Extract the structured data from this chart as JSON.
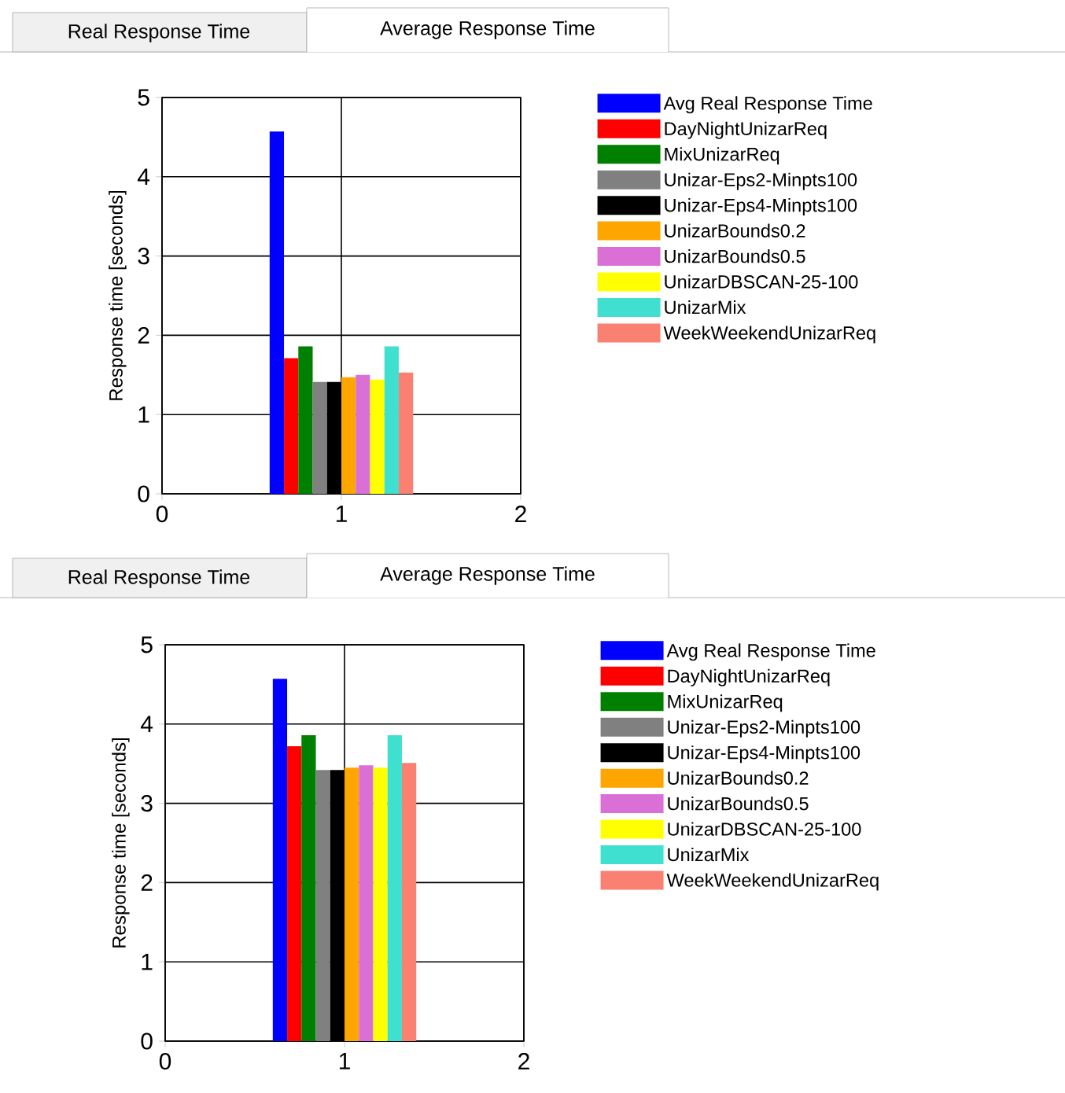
{
  "chart_data": [
    {
      "type": "bar",
      "ylabel": "Response time [seconds]",
      "annotations": [
        "Real Response Time",
        "Average Response Time"
      ],
      "xlim": [
        0,
        2
      ],
      "xticks": [
        0,
        1,
        2
      ],
      "ylim": [
        0,
        5
      ],
      "yticks": [
        0,
        1,
        2,
        3,
        4,
        5
      ],
      "grid": true,
      "legend": "right",
      "series": [
        {
          "name": "Avg Real Response Time",
          "color": "#0000ff",
          "x": [
            0.64
          ],
          "values": [
            4.57
          ]
        },
        {
          "name": "DayNightUnizarReq",
          "color": "#ff0000",
          "x": [
            0.72
          ],
          "values": [
            1.71
          ]
        },
        {
          "name": "MixUnizarReq",
          "color": "#008000",
          "x": [
            0.8
          ],
          "values": [
            1.86
          ]
        },
        {
          "name": "Unizar-Eps2-Minpts100",
          "color": "#808080",
          "x": [
            0.88
          ],
          "values": [
            1.41
          ]
        },
        {
          "name": "Unizar-Eps4-Minpts100",
          "color": "#000000",
          "x": [
            0.96
          ],
          "values": [
            1.41
          ]
        },
        {
          "name": "UnizarBounds0.2",
          "color": "#ffa500",
          "x": [
            1.04
          ],
          "values": [
            1.47
          ]
        },
        {
          "name": "UnizarBounds0.5",
          "color": "#da70d6",
          "x": [
            1.12
          ],
          "values": [
            1.5
          ]
        },
        {
          "name": "UnizarDBSCAN-25-100",
          "color": "#ffff00",
          "x": [
            1.2
          ],
          "values": [
            1.44
          ]
        },
        {
          "name": "UnizarMix",
          "color": "#40e0d0",
          "x": [
            1.28
          ],
          "values": [
            1.86
          ]
        },
        {
          "name": "WeekWeekendUnizarReq",
          "color": "#fa8072",
          "x": [
            1.36
          ],
          "values": [
            1.53
          ]
        }
      ]
    },
    {
      "type": "bar",
      "ylabel": "Response time [seconds]",
      "annotations": [
        "Real Response Time",
        "Average Response Time"
      ],
      "xlim": [
        0,
        2
      ],
      "xticks": [
        0,
        1,
        2
      ],
      "ylim": [
        0,
        5
      ],
      "yticks": [
        0,
        1,
        2,
        3,
        4,
        5
      ],
      "grid": true,
      "legend": "right",
      "series": [
        {
          "name": "Avg Real Response Time",
          "color": "#0000ff",
          "x": [
            0.64
          ],
          "values": [
            4.57
          ]
        },
        {
          "name": "DayNightUnizarReq",
          "color": "#ff0000",
          "x": [
            0.72
          ],
          "values": [
            3.72
          ]
        },
        {
          "name": "MixUnizarReq",
          "color": "#008000",
          "x": [
            0.8
          ],
          "values": [
            3.86
          ]
        },
        {
          "name": "Unizar-Eps2-Minpts100",
          "color": "#808080",
          "x": [
            0.88
          ],
          "values": [
            3.42
          ]
        },
        {
          "name": "Unizar-Eps4-Minpts100",
          "color": "#000000",
          "x": [
            0.96
          ],
          "values": [
            3.42
          ]
        },
        {
          "name": "UnizarBounds0.2",
          "color": "#ffa500",
          "x": [
            1.04
          ],
          "values": [
            3.45
          ]
        },
        {
          "name": "UnizarBounds0.5",
          "color": "#da70d6",
          "x": [
            1.12
          ],
          "values": [
            3.48
          ]
        },
        {
          "name": "UnizarDBSCAN-25-100",
          "color": "#ffff00",
          "x": [
            1.2
          ],
          "values": [
            3.45
          ]
        },
        {
          "name": "UnizarMix",
          "color": "#40e0d0",
          "x": [
            1.28
          ],
          "values": [
            3.86
          ]
        },
        {
          "name": "WeekWeekendUnizarReq",
          "color": "#fa8072",
          "x": [
            1.36
          ],
          "values": [
            3.51
          ]
        }
      ]
    }
  ]
}
